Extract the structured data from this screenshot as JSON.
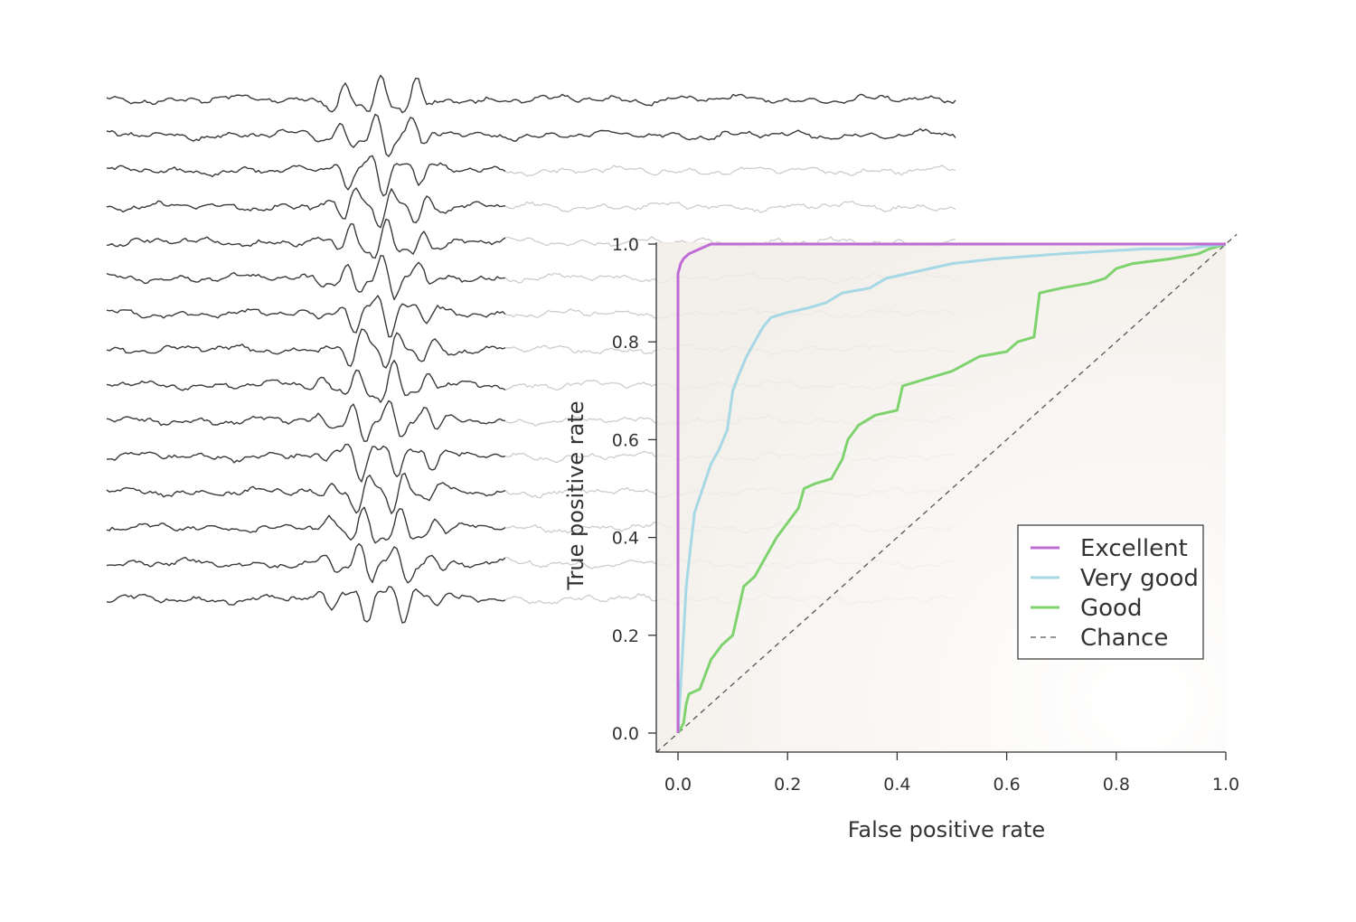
{
  "chart_data": {
    "type": "line",
    "xlabel": "False positive rate",
    "ylabel": "True positive rate",
    "xlim": [
      0,
      1
    ],
    "ylim": [
      0,
      1
    ],
    "x_ticks": [
      "0.0",
      "0.2",
      "0.4",
      "0.6",
      "0.8",
      "1.0"
    ],
    "y_ticks": [
      "0.0",
      "0.2",
      "0.4",
      "0.6",
      "0.8",
      "1.0"
    ],
    "grid": false,
    "legend_position": "bottom-right",
    "series": [
      {
        "name": "Excellent",
        "color": "#bf6bd6",
        "dashed": false,
        "points": [
          [
            0,
            0
          ],
          [
            0,
            0.94
          ],
          [
            0.005,
            0.96
          ],
          [
            0.01,
            0.97
          ],
          [
            0.02,
            0.98
          ],
          [
            0.04,
            0.99
          ],
          [
            0.06,
            1.0
          ],
          [
            1,
            1
          ]
        ]
      },
      {
        "name": "Very good",
        "color": "#a6d8e6",
        "dashed": false,
        "points": [
          [
            0,
            0
          ],
          [
            0.01,
            0.2
          ],
          [
            0.015,
            0.3
          ],
          [
            0.025,
            0.4
          ],
          [
            0.03,
            0.45
          ],
          [
            0.045,
            0.5
          ],
          [
            0.06,
            0.55
          ],
          [
            0.075,
            0.58
          ],
          [
            0.09,
            0.62
          ],
          [
            0.1,
            0.7
          ],
          [
            0.11,
            0.73
          ],
          [
            0.125,
            0.77
          ],
          [
            0.14,
            0.8
          ],
          [
            0.155,
            0.83
          ],
          [
            0.17,
            0.85
          ],
          [
            0.2,
            0.86
          ],
          [
            0.24,
            0.87
          ],
          [
            0.27,
            0.88
          ],
          [
            0.3,
            0.9
          ],
          [
            0.35,
            0.91
          ],
          [
            0.38,
            0.93
          ],
          [
            0.42,
            0.94
          ],
          [
            0.46,
            0.95
          ],
          [
            0.5,
            0.96
          ],
          [
            0.58,
            0.97
          ],
          [
            0.7,
            0.98
          ],
          [
            0.85,
            0.99
          ],
          [
            0.92,
            0.99
          ],
          [
            1,
            1
          ]
        ]
      },
      {
        "name": "Good",
        "color": "#7fd36f",
        "dashed": false,
        "points": [
          [
            0,
            0
          ],
          [
            0.01,
            0.02
          ],
          [
            0.015,
            0.06
          ],
          [
            0.02,
            0.08
          ],
          [
            0.04,
            0.09
          ],
          [
            0.05,
            0.12
          ],
          [
            0.06,
            0.15
          ],
          [
            0.08,
            0.18
          ],
          [
            0.1,
            0.2
          ],
          [
            0.11,
            0.25
          ],
          [
            0.12,
            0.3
          ],
          [
            0.14,
            0.32
          ],
          [
            0.16,
            0.36
          ],
          [
            0.17,
            0.38
          ],
          [
            0.18,
            0.4
          ],
          [
            0.2,
            0.43
          ],
          [
            0.22,
            0.46
          ],
          [
            0.23,
            0.5
          ],
          [
            0.25,
            0.51
          ],
          [
            0.28,
            0.52
          ],
          [
            0.3,
            0.56
          ],
          [
            0.31,
            0.6
          ],
          [
            0.33,
            0.63
          ],
          [
            0.36,
            0.65
          ],
          [
            0.4,
            0.66
          ],
          [
            0.41,
            0.71
          ],
          [
            0.44,
            0.72
          ],
          [
            0.47,
            0.73
          ],
          [
            0.5,
            0.74
          ],
          [
            0.55,
            0.77
          ],
          [
            0.6,
            0.78
          ],
          [
            0.62,
            0.8
          ],
          [
            0.65,
            0.81
          ],
          [
            0.66,
            0.9
          ],
          [
            0.7,
            0.91
          ],
          [
            0.75,
            0.92
          ],
          [
            0.78,
            0.93
          ],
          [
            0.8,
            0.95
          ],
          [
            0.83,
            0.96
          ],
          [
            0.9,
            0.97
          ],
          [
            0.95,
            0.98
          ],
          [
            0.97,
            0.99
          ],
          [
            1,
            1
          ]
        ]
      },
      {
        "name": "Chance",
        "color": "#555555",
        "dashed": true,
        "points": [
          [
            -0.04,
            -0.04
          ],
          [
            1.02,
            1.02
          ]
        ]
      }
    ]
  }
}
